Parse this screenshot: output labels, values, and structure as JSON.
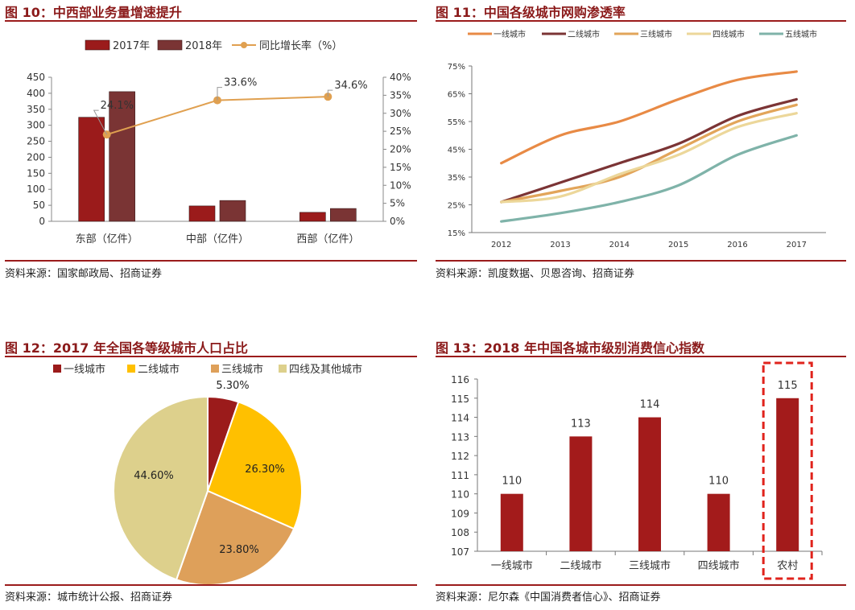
{
  "panels": {
    "p10": {
      "title": "图 10：中西部业务量增速提升",
      "source": "资料来源：国家邮政局、招商证券"
    },
    "p11": {
      "title": "图 11：中国各级城市网购渗透率",
      "source": "资料来源：凯度数据、贝恩咨询、招商证券"
    },
    "p12": {
      "title": "图 12：2017 年全国各等级城市人口占比",
      "source": "资料来源：城市统计公报、招商证券"
    },
    "p13": {
      "title": "图 13：2018 年中国各城市级别消费信心指数",
      "source": "资料来源：尼尔森《中国消费者信心》、招商证券"
    }
  },
  "colors": {
    "title": "#8b1a1a",
    "rule": "#9b1c1c",
    "bar2017": "#9b1b1b",
    "bar2018": "#7a3434",
    "growth": "#e0a050"
  },
  "chart_data": [
    {
      "id": "fig10",
      "type": "bar",
      "categories": [
        "东部（亿件）",
        "中部（亿件）",
        "西部（亿件）"
      ],
      "series": [
        {
          "name": "2017年",
          "values": [
            325,
            48,
            28
          ],
          "color": "#9b1b1b",
          "axis": "left"
        },
        {
          "name": "2018年",
          "values": [
            405,
            65,
            40
          ],
          "color": "#7a3434",
          "axis": "left"
        },
        {
          "name": "同比增长率（%）",
          "type": "line",
          "values": [
            24.1,
            33.6,
            34.6
          ],
          "labels": [
            "24.1%",
            "33.6%",
            "34.6%"
          ],
          "color": "#e0a050",
          "axis": "right"
        }
      ],
      "ylim": [
        0,
        450
      ],
      "yticks": [
        "0",
        "50",
        "100",
        "150",
        "200",
        "250",
        "300",
        "350",
        "400",
        "450"
      ],
      "y2lim": [
        0,
        40
      ],
      "y2ticks": [
        "0%",
        "5%",
        "10%",
        "15%",
        "20%",
        "25%",
        "30%",
        "35%",
        "40%"
      ],
      "legend_position": "top"
    },
    {
      "id": "fig11",
      "type": "line",
      "x": [
        "2012",
        "2013",
        "2014",
        "2015",
        "2016",
        "2017"
      ],
      "series": [
        {
          "name": "一线城市",
          "values": [
            40,
            50,
            55,
            63,
            70,
            73
          ],
          "color": "#e88a45"
        },
        {
          "name": "二线城市",
          "values": [
            26,
            33,
            40,
            47,
            57,
            63
          ],
          "color": "#7b3435"
        },
        {
          "name": "三线城市",
          "values": [
            26,
            30,
            35,
            45,
            55,
            61
          ],
          "color": "#e2a55a"
        },
        {
          "name": "四线城市",
          "values": [
            26,
            28,
            36,
            43,
            53,
            58
          ],
          "color": "#ecd79a"
        },
        {
          "name": "五线城市",
          "values": [
            19,
            22,
            26,
            32,
            43,
            50
          ],
          "color": "#7fb3a9"
        }
      ],
      "ylim": [
        15,
        75
      ],
      "yticks": [
        "15%",
        "25%",
        "35%",
        "45%",
        "55%",
        "65%",
        "75%"
      ],
      "legend_position": "top"
    },
    {
      "id": "fig12",
      "type": "pie",
      "slices": [
        {
          "name": "一线城市",
          "value": 5.3,
          "label": "5.30%",
          "color": "#9b1b1b"
        },
        {
          "name": "二线城市",
          "value": 26.3,
          "label": "26.30%",
          "color": "#ffc000"
        },
        {
          "name": "三线城市",
          "value": 23.8,
          "label": "23.80%",
          "color": "#dea05a"
        },
        {
          "name": "四线及其他城市",
          "value": 44.6,
          "label": "44.60%",
          "color": "#ddd08c"
        }
      ],
      "legend_position": "top"
    },
    {
      "id": "fig13",
      "type": "bar",
      "categories": [
        "一线城市",
        "二线城市",
        "三线城市",
        "四线城市",
        "农村"
      ],
      "values": [
        110,
        113,
        114,
        110,
        115
      ],
      "labels": [
        "110",
        "113",
        "114",
        "110",
        "115"
      ],
      "color": "#a31b1b",
      "ylim": [
        107,
        116
      ],
      "yticks": [
        "107",
        "108",
        "109",
        "110",
        "111",
        "112",
        "113",
        "114",
        "115",
        "116"
      ],
      "highlight_category": "农村",
      "highlight_color": "#e0231c"
    }
  ]
}
